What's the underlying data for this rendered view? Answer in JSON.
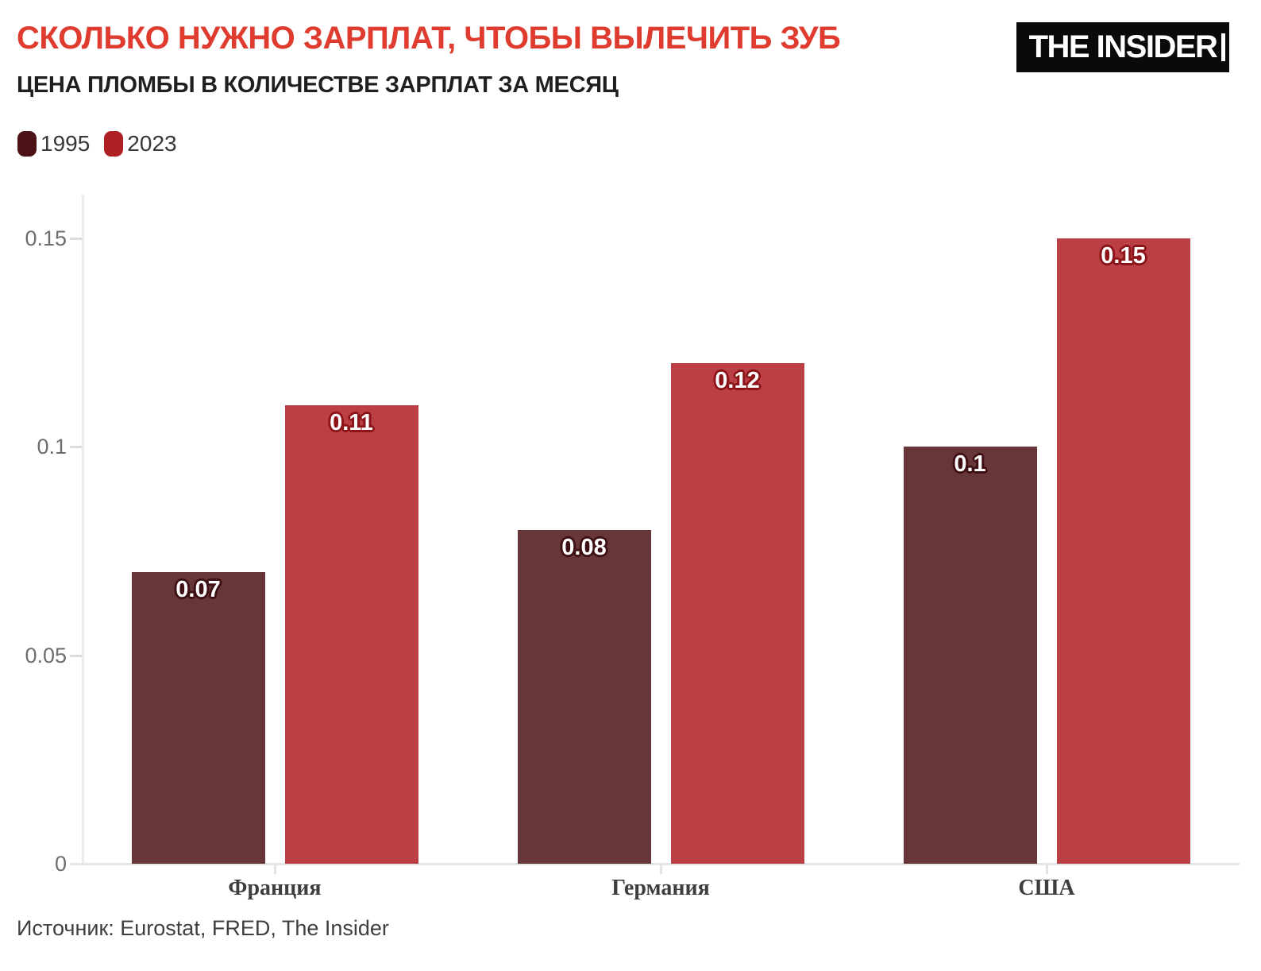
{
  "header": {
    "title": "СКОЛЬКО НУЖНО ЗАРПЛАТ, ЧТОБЫ ВЫЛЕЧИТЬ ЗУБ",
    "subtitle": "ЦЕНА ПЛОМБЫ В КОЛИЧЕСТВЕ ЗАРПЛАТ ЗА МЕСЯЦ",
    "title_color": "#df3b2e",
    "subtitle_color": "#1f1f1f"
  },
  "logo": {
    "text": "THE INSIDER",
    "bg_color": "#0a0a0a",
    "text_color": "#ffffff"
  },
  "legend": {
    "items": [
      {
        "label": "1995",
        "color": "#4c1215"
      },
      {
        "label": "2023",
        "color": "#b01f24"
      }
    ]
  },
  "chart_data": {
    "type": "bar",
    "title": "СКОЛЬКО НУЖНО ЗАРПЛАТ, ЧТОБЫ ВЫЛЕЧИТЬ ЗУБ",
    "subtitle": "ЦЕНА ПЛОМБЫ В КОЛИЧЕСТВЕ ЗАРПЛАТ ЗА МЕСЯЦ",
    "categories": [
      "Франция",
      "Германия",
      "США"
    ],
    "series": [
      {
        "name": "1995",
        "values": [
          0.07,
          0.08,
          0.1
        ],
        "labels": [
          "0.07",
          "0.08",
          "0.1"
        ],
        "bar_color": "#673638",
        "label_halo": "#3f1014"
      },
      {
        "name": "2023",
        "values": [
          0.11,
          0.12,
          0.15
        ],
        "labels": [
          "0.11",
          "0.12",
          "0.15"
        ],
        "bar_color": "#bb4045",
        "label_halo": "#8c1418"
      }
    ],
    "xlabel": "",
    "ylabel": "",
    "ylim": [
      0,
      0.15
    ],
    "yticks": [
      {
        "value": 0,
        "label": "0"
      },
      {
        "value": 0.05,
        "label": "0.05"
      },
      {
        "value": 0.1,
        "label": "0.1"
      },
      {
        "value": 0.15,
        "label": "0.15"
      }
    ],
    "grid": "off",
    "legend_position": "top-left"
  },
  "footer": {
    "source": "Источник: Eurostat, FRED, The Insider"
  }
}
